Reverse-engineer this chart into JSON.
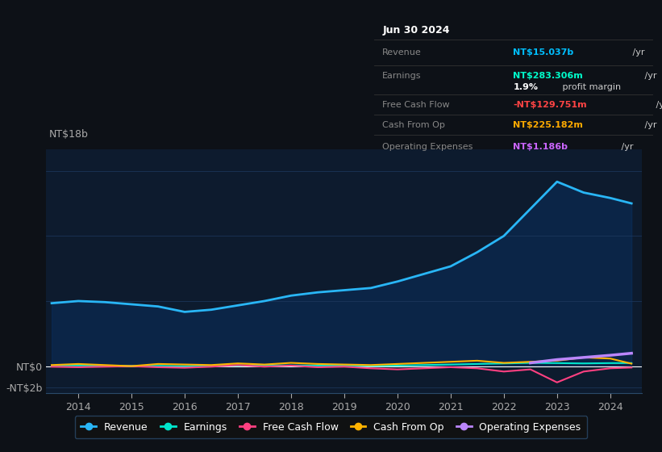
{
  "bg_color": "#0d1117",
  "plot_bg_color": "#0d1b2e",
  "grid_color": "#1e3a5f",
  "title_box": {
    "date": "Jun 30 2024",
    "rows": [
      {
        "label": "Revenue",
        "value": "NT$15.037b",
        "value_color": "#00bfff",
        "suffix": " /yr"
      },
      {
        "label": "Earnings",
        "value": "NT$283.306m",
        "value_color": "#00ffcc",
        "suffix": " /yr"
      },
      {
        "label": "",
        "value": "1.9%",
        "value_color": "#ffffff",
        "suffix": " profit margin"
      },
      {
        "label": "Free Cash Flow",
        "value": "-NT$129.751m",
        "value_color": "#ff4444",
        "suffix": " /yr"
      },
      {
        "label": "Cash From Op",
        "value": "NT$225.182m",
        "value_color": "#ffaa00",
        "suffix": " /yr"
      },
      {
        "label": "Operating Expenses",
        "value": "NT$1.186b",
        "value_color": "#cc66ff",
        "suffix": " /yr"
      }
    ]
  },
  "ylim": [
    -2500000000,
    20000000000
  ],
  "x_years": [
    2013.5,
    2014.0,
    2014.5,
    2015.0,
    2015.5,
    2016.0,
    2016.5,
    2017.0,
    2017.5,
    2018.0,
    2018.5,
    2019.0,
    2019.5,
    2020.0,
    2020.5,
    2021.0,
    2021.5,
    2022.0,
    2022.5,
    2023.0,
    2023.5,
    2024.0,
    2024.4
  ],
  "revenue": [
    5800000000,
    6000000000,
    5900000000,
    5700000000,
    5500000000,
    5000000000,
    5200000000,
    5600000000,
    6000000000,
    6500000000,
    6800000000,
    7000000000,
    7200000000,
    7800000000,
    8500000000,
    9200000000,
    10500000000,
    12000000000,
    14500000000,
    17000000000,
    16000000000,
    15500000000,
    15000000000
  ],
  "earnings": [
    50000000,
    60000000,
    40000000,
    30000000,
    20000000,
    -10000000,
    20000000,
    50000000,
    70000000,
    60000000,
    50000000,
    40000000,
    30000000,
    50000000,
    100000000,
    150000000,
    200000000,
    250000000,
    300000000,
    280000000,
    250000000,
    280000000,
    283000000
  ],
  "free_cash_flow": [
    -50000000,
    -100000000,
    -50000000,
    0,
    -100000000,
    -150000000,
    -50000000,
    100000000,
    -50000000,
    50000000,
    -100000000,
    -50000000,
    -200000000,
    -300000000,
    -200000000,
    -100000000,
    -200000000,
    -500000000,
    -300000000,
    -1500000000,
    -500000000,
    -200000000,
    -130000000
  ],
  "cash_from_op": [
    100000000,
    200000000,
    100000000,
    0,
    200000000,
    150000000,
    100000000,
    250000000,
    150000000,
    300000000,
    200000000,
    150000000,
    100000000,
    200000000,
    300000000,
    400000000,
    500000000,
    300000000,
    400000000,
    500000000,
    800000000,
    700000000,
    225000000
  ],
  "op_expenses": [
    0,
    0,
    0,
    0,
    0,
    0,
    0,
    0,
    0,
    0,
    0,
    0,
    0,
    0,
    0,
    0,
    0,
    0,
    300000000,
    600000000,
    800000000,
    1000000000,
    1186000000
  ],
  "revenue_color": "#29b6f6",
  "earnings_color": "#00e5cc",
  "fcf_color": "#ff4081",
  "cashop_color": "#ffb300",
  "opex_line_color": "#bb86fc",
  "legend": [
    {
      "label": "Revenue",
      "color": "#29b6f6"
    },
    {
      "label": "Earnings",
      "color": "#00e5cc"
    },
    {
      "label": "Free Cash Flow",
      "color": "#ff4081"
    },
    {
      "label": "Cash From Op",
      "color": "#ffb300"
    },
    {
      "label": "Operating Expenses",
      "color": "#bb86fc"
    }
  ]
}
